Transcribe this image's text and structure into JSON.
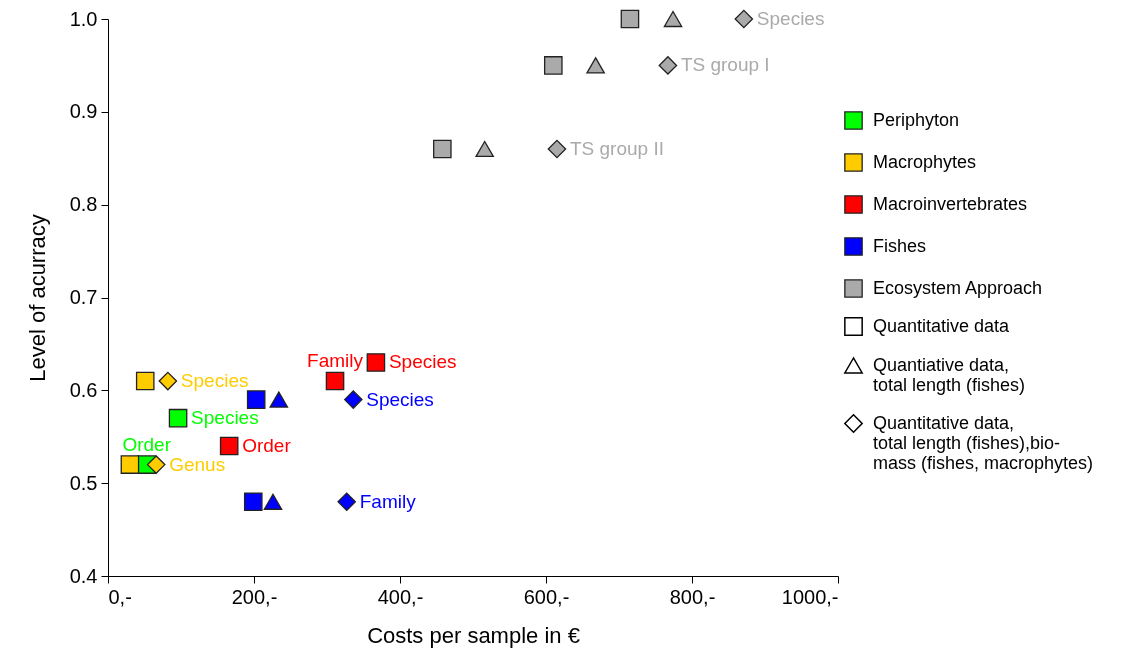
{
  "chart_data": {
    "type": "scatter",
    "xlabel": "Costs per sample in €",
    "ylabel": "Level of acurracy",
    "xlim": [
      0,
      1000
    ],
    "ylim": [
      0.4,
      1.0
    ],
    "xticks": [
      {
        "value": 0,
        "label": "0,-"
      },
      {
        "value": 200,
        "label": "200,-"
      },
      {
        "value": 400,
        "label": "400,-"
      },
      {
        "value": 600,
        "label": "600,-"
      },
      {
        "value": 800,
        "label": "800,-"
      },
      {
        "value": 1000,
        "label": "1000,-"
      }
    ],
    "yticks": [
      0.4,
      0.5,
      0.6,
      0.7,
      0.8,
      0.9,
      {
        "value": 1.0,
        "label": "1.0"
      }
    ],
    "grid": false,
    "legend": "right",
    "series": [
      {
        "name": "Periphyton",
        "color": "#00ff00",
        "marker": "square",
        "x": [
          96,
          53
        ],
        "values": [
          0.57,
          0.52
        ]
      },
      {
        "name": "Macrophytes",
        "color": "#ffcc00",
        "marker": "square",
        "x": [
          51,
          30
        ],
        "values": [
          0.61,
          0.52
        ]
      },
      {
        "color": "#ffcc00",
        "marker": "diamond",
        "x": [
          82,
          66
        ],
        "values": [
          0.61,
          0.52
        ]
      },
      {
        "name": "Macroinvertebrates",
        "color": "#ff0000",
        "marker": "square",
        "x": [
          311,
          367,
          166
        ],
        "values": [
          0.61,
          0.63,
          0.54
        ]
      },
      {
        "name": "Fishes",
        "color": "#0000ff",
        "marker": "square",
        "x": [
          203,
          199
        ],
        "values": [
          0.59,
          0.48
        ]
      },
      {
        "color": "#0000ff",
        "marker": "triangle",
        "x": [
          234,
          226
        ],
        "values": [
          0.59,
          0.48
        ]
      },
      {
        "color": "#0000ff",
        "marker": "diamond",
        "x": [
          336,
          327
        ],
        "values": [
          0.59,
          0.48
        ]
      },
      {
        "name": "Ecosystem Approach",
        "color": "#aaaaaa",
        "marker": "square",
        "x": [
          715,
          610,
          458
        ],
        "values": [
          1.0,
          0.95,
          0.86
        ]
      },
      {
        "color": "#aaaaaa",
        "marker": "triangle",
        "x": [
          774,
          668,
          516
        ],
        "values": [
          1.0,
          0.95,
          0.86
        ]
      },
      {
        "color": "#aaaaaa",
        "marker": "diamond",
        "x": [
          871,
          767,
          615
        ],
        "values": [
          1.0,
          0.95,
          0.86
        ]
      }
    ],
    "annotations": [
      {
        "text": "Species",
        "x": 871,
        "y": 1.0
      },
      {
        "text": "TS group I",
        "x": 767,
        "y": 0.95
      },
      {
        "text": "TS group II",
        "x": 615,
        "y": 0.86
      },
      {
        "text": "Species",
        "x": 82,
        "y": 0.61
      },
      {
        "text": "Genus",
        "x": 66,
        "y": 0.52
      },
      {
        "text": "Species",
        "x": 96,
        "y": 0.57
      },
      {
        "text": "Order",
        "x": 53,
        "y": 0.52
      },
      {
        "text": "Family",
        "x": 311,
        "y": 0.61
      },
      {
        "text": "Species",
        "x": 367,
        "y": 0.63
      },
      {
        "text": "Order",
        "x": 166,
        "y": 0.54
      },
      {
        "text": "Species",
        "x": 336,
        "y": 0.59
      },
      {
        "text": "Family",
        "x": 327,
        "y": 0.48
      },
      "Quantitative data",
      "Quantiative data,\ntotal length (fishes)",
      "Quantitative data,\ntotal length (fishes),bio-\nmass (fishes, macrophytes)"
    ]
  }
}
